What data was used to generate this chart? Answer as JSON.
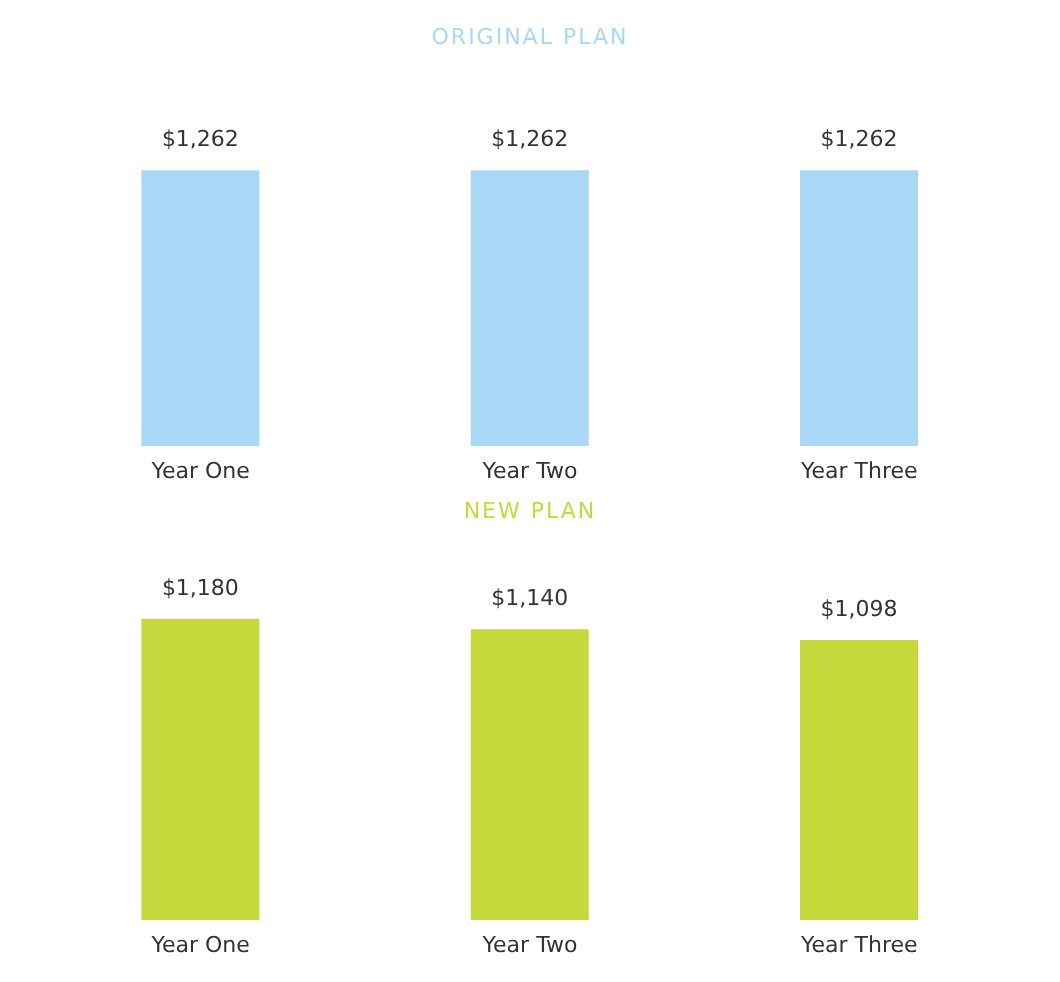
{
  "chart_data": [
    {
      "type": "bar",
      "title": "ORIGINAL PLAN",
      "categories": [
        "Year One",
        "Year Two",
        "Year Three"
      ],
      "values": [
        1262,
        1262,
        1262
      ],
      "value_labels": [
        "$1,262",
        "$1,262",
        "$1,262"
      ],
      "color": "#a9d8f6"
    },
    {
      "type": "bar",
      "title": "NEW PLAN",
      "categories": [
        "Year One",
        "Year Two",
        "Year Three"
      ],
      "values": [
        1180,
        1140,
        1098
      ],
      "value_labels": [
        "$1,180",
        "$1,140",
        "$1,098"
      ],
      "color": "#c6d93c"
    }
  ]
}
